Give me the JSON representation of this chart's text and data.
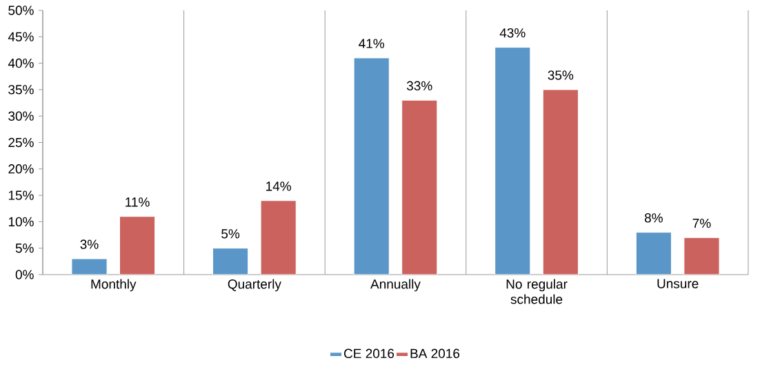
{
  "chart_data": {
    "type": "bar",
    "categories": [
      "Monthly",
      "Quarterly",
      "Annually",
      "No regular schedule",
      "Unsure"
    ],
    "series": [
      {
        "name": "CE 2016",
        "color": "#5b96c8",
        "values": [
          3,
          5,
          41,
          43,
          8
        ],
        "value_labels": [
          "3%",
          "5%",
          "41%",
          "43%",
          "8%"
        ]
      },
      {
        "name": "BA 2016",
        "color": "#cc625d",
        "values": [
          11,
          14,
          33,
          35,
          7
        ],
        "value_labels": [
          "11%",
          "14%",
          "33%",
          "35%",
          "7%"
        ]
      }
    ],
    "ylim": [
      0,
      50
    ],
    "yticks": [
      {
        "value": 0,
        "label": "0%"
      },
      {
        "value": 5,
        "label": "5%"
      },
      {
        "value": 10,
        "label": "10%"
      },
      {
        "value": 15,
        "label": "15%"
      },
      {
        "value": 20,
        "label": "20%"
      },
      {
        "value": 25,
        "label": "25%"
      },
      {
        "value": 30,
        "label": "30%"
      },
      {
        "value": 35,
        "label": "35%"
      },
      {
        "value": 40,
        "label": "40%"
      },
      {
        "value": 45,
        "label": "45%"
      },
      {
        "value": 50,
        "label": "50%"
      }
    ],
    "grid": "x",
    "legend": "bottom"
  }
}
